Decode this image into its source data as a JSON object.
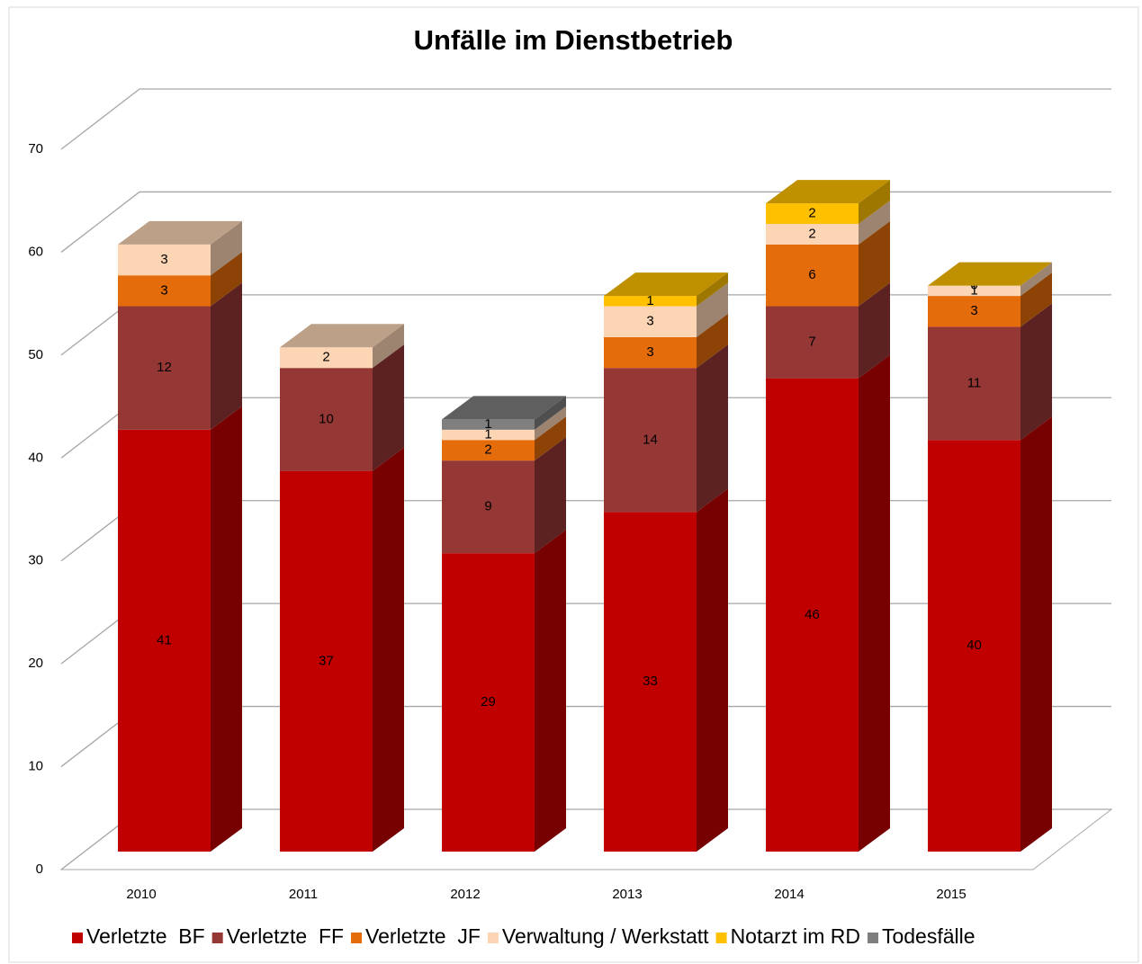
{
  "chart_data": {
    "type": "bar3d_stacked",
    "title": "Unfälle im Dienstbetrieb",
    "categories": [
      "2010",
      "2011",
      "2012",
      "2013",
      "2014",
      "2015"
    ],
    "series": [
      {
        "name": "Verletzte  BF",
        "color": "#c00000",
        "values": [
          41,
          37,
          29,
          33,
          46,
          40
        ]
      },
      {
        "name": "Verletzte  FF",
        "color": "#953735",
        "values": [
          12,
          10,
          9,
          14,
          7,
          11
        ]
      },
      {
        "name": "Verletzte  JF",
        "color": "#e46c0a",
        "values": [
          3,
          null,
          2,
          3,
          6,
          3
        ]
      },
      {
        "name": "Verwaltung / Werkstatt",
        "color": "#fcd5b5",
        "values": [
          3,
          2,
          1,
          3,
          2,
          1
        ]
      },
      {
        "name": "Notarzt im RD",
        "color": "#ffc000",
        "values": [
          null,
          null,
          null,
          1,
          2,
          0
        ]
      },
      {
        "name": "Todesfälle",
        "color": "#7f7f7f",
        "values": [
          null,
          null,
          1,
          null,
          null,
          null
        ]
      }
    ],
    "ylim": [
      0,
      70
    ],
    "yticks": [
      0,
      10,
      20,
      30,
      40,
      50,
      60,
      70
    ],
    "grid": true,
    "legend": "bottom"
  }
}
